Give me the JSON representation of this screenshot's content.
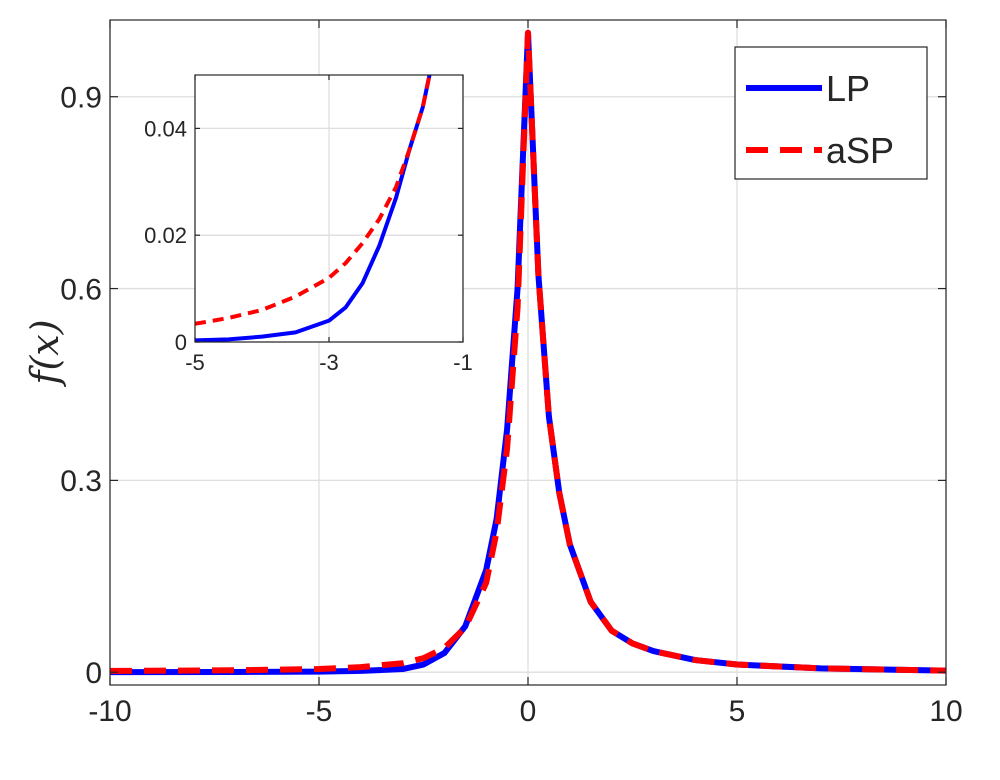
{
  "chart_data": [
    {
      "type": "line",
      "title": "",
      "xlabel": "",
      "ylabel": "f(x)",
      "xlim": [
        -10,
        10
      ],
      "ylim": [
        -0.02,
        1.02
      ],
      "x_ticks": [
        -10,
        -5,
        0,
        5,
        10
      ],
      "x_tick_labels": [
        "-10",
        "-5",
        "0",
        "5",
        "10"
      ],
      "y_ticks": [
        0,
        0.3,
        0.6,
        0.9
      ],
      "y_tick_labels": [
        "0",
        "0.3",
        "0.6",
        "0.9"
      ],
      "grid": true,
      "legend": "top-right",
      "x": [
        -10,
        -7,
        -5,
        -4,
        -3,
        -2.5,
        -2,
        -1.5,
        -1,
        -0.75,
        -0.5,
        -0.25,
        0,
        0.25,
        0.5,
        0.75,
        1,
        1.5,
        2,
        2.5,
        3,
        4,
        5,
        7,
        10
      ],
      "series": [
        {
          "name": "LP",
          "color": "#0000ff",
          "style": "solid",
          "values": [
            0.0001,
            0.0004,
            0.001,
            0.002,
            0.005,
            0.012,
            0.03,
            0.072,
            0.16,
            0.24,
            0.38,
            0.6,
            1.0,
            0.62,
            0.4,
            0.28,
            0.2,
            0.11,
            0.065,
            0.045,
            0.033,
            0.019,
            0.012,
            0.006,
            0.0025
          ]
        },
        {
          "name": "aSP",
          "color": "#ff0000",
          "style": "dashed",
          "values": [
            0.002,
            0.003,
            0.005,
            0.008,
            0.014,
            0.022,
            0.038,
            0.07,
            0.14,
            0.22,
            0.35,
            0.57,
            1.0,
            0.62,
            0.4,
            0.28,
            0.2,
            0.11,
            0.065,
            0.045,
            0.033,
            0.019,
            0.012,
            0.006,
            0.0025
          ]
        }
      ]
    },
    {
      "type": "line",
      "title": "",
      "xlabel": "",
      "ylabel": "",
      "xlim": [
        -5,
        -1
      ],
      "ylim": [
        0,
        0.05
      ],
      "x_ticks": [
        -5,
        -3,
        -1
      ],
      "x_tick_labels": [
        "-5",
        "-3",
        "-1"
      ],
      "y_ticks": [
        0,
        0.02,
        0.04
      ],
      "y_tick_labels": [
        "0",
        "0.02",
        "0.04"
      ],
      "grid": true,
      "x": [
        -5,
        -4.5,
        -4,
        -3.5,
        -3,
        -2.75,
        -2.5,
        -2.25,
        -2,
        -1.8,
        -1.6,
        -1.5,
        -1.4,
        -1.3
      ],
      "series": [
        {
          "name": "LP",
          "color": "#0000ff",
          "style": "solid",
          "values": [
            0.0003,
            0.0005,
            0.001,
            0.0018,
            0.004,
            0.0065,
            0.011,
            0.018,
            0.027,
            0.036,
            0.044,
            0.05,
            0.056,
            0.062
          ]
        },
        {
          "name": "aSP",
          "color": "#ff0000",
          "style": "dashed",
          "values": [
            0.0034,
            0.0045,
            0.006,
            0.0085,
            0.012,
            0.0148,
            0.0185,
            0.023,
            0.029,
            0.036,
            0.044,
            0.05,
            0.056,
            0.062
          ]
        }
      ]
    }
  ]
}
